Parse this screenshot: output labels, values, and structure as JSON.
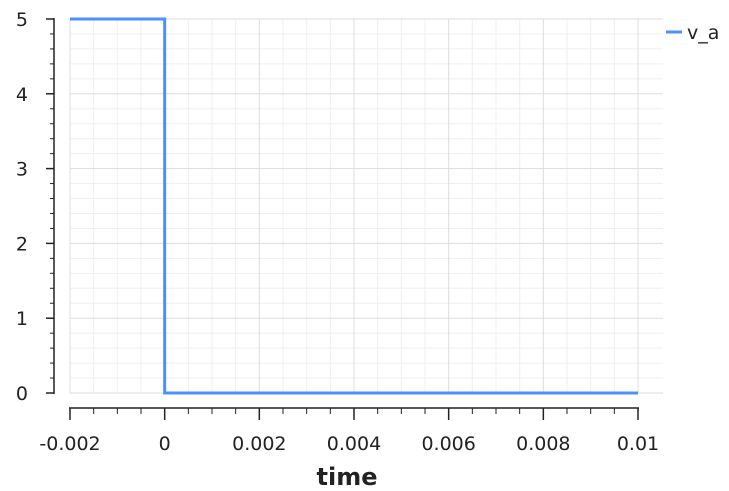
{
  "chart_data": {
    "type": "line",
    "title": "",
    "xlabel": "time",
    "ylabel": "",
    "xlim": [
      -0.002,
      0.01
    ],
    "ylim": [
      0,
      5
    ],
    "x_ticks": [
      "-0.002",
      "0",
      "0.002",
      "0.004",
      "0.006",
      "0.008",
      "0.01"
    ],
    "y_ticks": [
      "0",
      "1",
      "2",
      "3",
      "4",
      "5"
    ],
    "grid": true,
    "legend": "top-right",
    "series": [
      {
        "name": "v_a",
        "color": "#4a90ff",
        "x": [
          -0.002,
          0,
          0,
          0.01
        ],
        "y": [
          5,
          5,
          0,
          0
        ]
      }
    ]
  }
}
